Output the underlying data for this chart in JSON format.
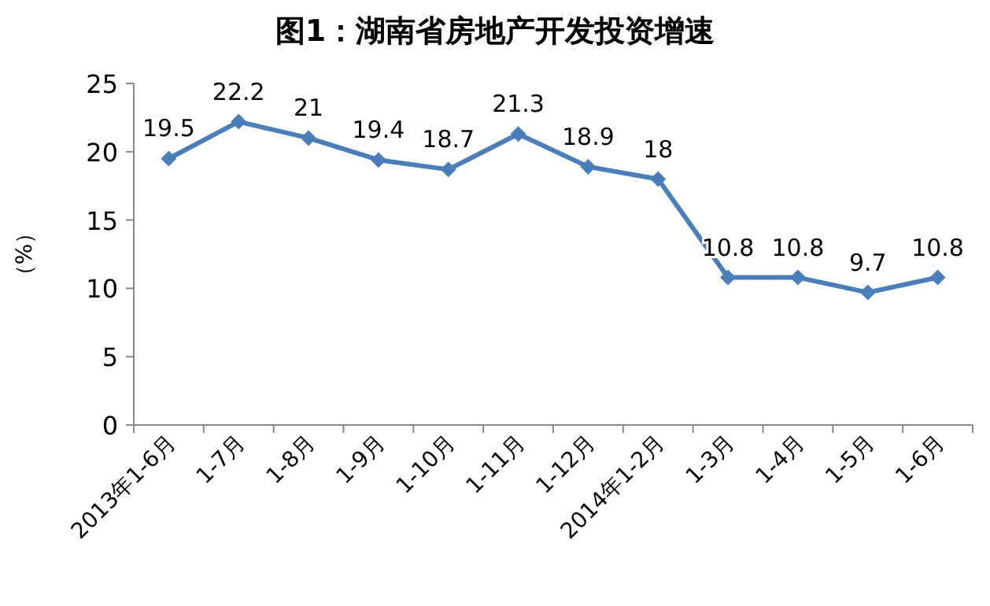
{
  "chart_data": {
    "type": "line",
    "title": "图1：湖南省房地产开发投资增速",
    "ylabel": "（%）",
    "categories": [
      "2013年1-6月",
      "1-7月",
      "1-8月",
      "1-9月",
      "1-10月",
      "1-11月",
      "1-12月",
      "2014年1-2月",
      "1-3月",
      "1-4月",
      "1-5月",
      "1-6月"
    ],
    "series": [
      {
        "color": "#4a7ebb",
        "values": [
          19.5,
          22.2,
          21,
          19.4,
          18.7,
          21.3,
          18.9,
          18,
          10.8,
          10.8,
          9.7,
          10.8
        ]
      }
    ],
    "ylim": [
      0,
      25
    ],
    "yticks": [
      0,
      5,
      10,
      15,
      20,
      25
    ],
    "data_labels": true,
    "marker": "diamond",
    "line_style": "solid"
  }
}
